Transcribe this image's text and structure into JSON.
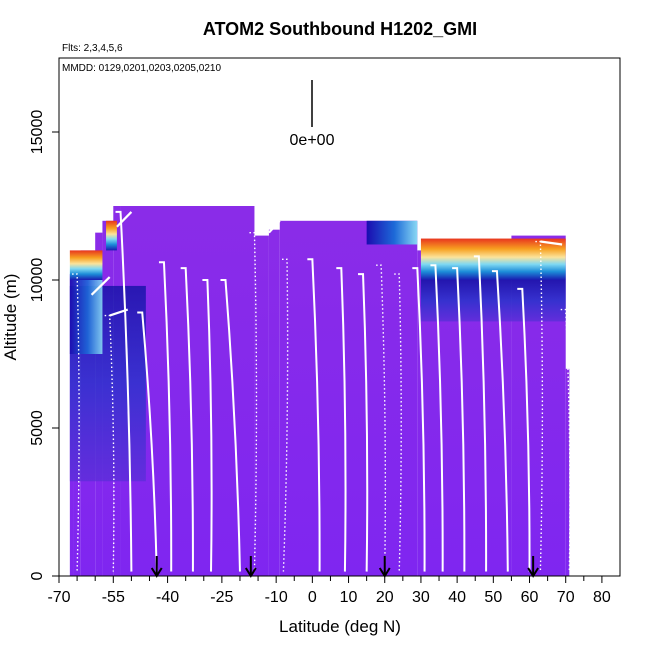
{
  "chart_data": {
    "type": "heatmap",
    "title": "ATOM2 Southbound H1202_GMI",
    "subtitle_flights": "Flts: 2,3,4,5,6",
    "subtitle_dates": "MMDD: 0129,0201,0203,0205,0210",
    "xlabel": "Latitude (deg N)",
    "ylabel": "Altitude (m)",
    "xlim": [
      -70,
      85
    ],
    "ylim": [
      0,
      17500
    ],
    "x_ticks": [
      -70,
      -55,
      -40,
      -25,
      -10,
      0,
      10,
      20,
      30,
      40,
      50,
      60,
      70,
      80
    ],
    "x_tick_labels": [
      "-70",
      "-55",
      "-40",
      "-25",
      "-10",
      "0",
      "10",
      "20",
      "30",
      "40",
      "50",
      "60",
      "70",
      "80"
    ],
    "x_minor_ticks": [
      -65,
      -60,
      -50,
      -45,
      -35,
      -30,
      -20,
      -15,
      -5,
      5,
      15,
      25,
      35,
      45,
      55,
      65,
      75
    ],
    "y_ticks": [
      0,
      5000,
      10000,
      15000
    ],
    "y_tick_labels": [
      "0",
      "5000",
      "10000",
      "15000"
    ],
    "colorbar_label": "0e+00",
    "colorbar_value": 0,
    "date_marker_latitudes": [
      -43,
      -17,
      20,
      61
    ],
    "field_base_altitude": 12000,
    "field_columns": [
      {
        "lat0": -67,
        "lat1": -66,
        "top": 10200
      },
      {
        "lat0": -66,
        "lat1": -64,
        "top": 10400
      },
      {
        "lat0": -64,
        "lat1": -60,
        "top": 11000
      },
      {
        "lat0": -60,
        "lat1": -58,
        "top": 11600
      },
      {
        "lat0": -58,
        "lat1": -55,
        "top": 12000
      },
      {
        "lat0": -55,
        "lat1": -53,
        "top": 12500
      },
      {
        "lat0": -53,
        "lat1": -16,
        "top": 12500
      },
      {
        "lat0": -16,
        "lat1": -12,
        "top": 11500
      },
      {
        "lat0": -12,
        "lat1": -9,
        "top": 11700
      },
      {
        "lat0": -9,
        "lat1": 29,
        "top": 12000
      },
      {
        "lat0": 29,
        "lat1": 55,
        "top": 11000
      },
      {
        "lat0": 55,
        "lat1": 70,
        "top": 11500
      },
      {
        "lat0": 70,
        "lat1": 71,
        "top": 7000
      }
    ],
    "high_values_top": [
      {
        "lat0": -67,
        "lat1": -58,
        "alt0": 10000,
        "alt1": 11000
      },
      {
        "lat0": -57,
        "lat1": -54,
        "alt0": 11000,
        "alt1": 12000
      },
      {
        "lat0": 15,
        "lat1": 29,
        "alt0": 11200,
        "alt1": 12000
      },
      {
        "lat0": 30,
        "lat1": 70,
        "alt0": 10000,
        "alt1": 11400
      }
    ],
    "profiles": [
      {
        "lat_top": -65,
        "alt_top": 10200,
        "lat_bottom": -65,
        "dashed": true
      },
      {
        "lat_top": -56,
        "alt_top": 8800,
        "lat_bottom": -55,
        "dashed": true
      },
      {
        "lat_top": -53,
        "alt_top": 12300,
        "lat_bottom": -50,
        "dashed": false
      },
      {
        "lat_top": -47,
        "alt_top": 8900,
        "lat_bottom": -43,
        "dashed": false
      },
      {
        "lat_top": -41,
        "alt_top": 10600,
        "lat_bottom": -39,
        "dashed": false
      },
      {
        "lat_top": -35,
        "alt_top": 10400,
        "lat_bottom": -33,
        "dashed": false
      },
      {
        "lat_top": -29,
        "alt_top": 10000,
        "lat_bottom": -28,
        "dashed": false
      },
      {
        "lat_top": -24,
        "alt_top": 10000,
        "lat_bottom": -20,
        "dashed": false
      },
      {
        "lat_top": -16,
        "alt_top": 11600,
        "lat_bottom": -16,
        "dashed": true
      },
      {
        "lat_top": -7,
        "alt_top": 10700,
        "lat_bottom": -8,
        "dashed": true
      },
      {
        "lat_top": 0,
        "alt_top": 10700,
        "lat_bottom": 2,
        "dashed": false
      },
      {
        "lat_top": 8,
        "alt_top": 10400,
        "lat_bottom": 9,
        "dashed": false
      },
      {
        "lat_top": 14,
        "alt_top": 10200,
        "lat_bottom": 15,
        "dashed": false
      },
      {
        "lat_top": 19,
        "alt_top": 10500,
        "lat_bottom": 20,
        "dashed": true
      },
      {
        "lat_top": 24,
        "alt_top": 10200,
        "lat_bottom": 24,
        "dashed": true
      },
      {
        "lat_top": 29,
        "alt_top": 10400,
        "lat_bottom": 31,
        "dashed": false
      },
      {
        "lat_top": 34,
        "alt_top": 10500,
        "lat_bottom": 36,
        "dashed": false
      },
      {
        "lat_top": 40,
        "alt_top": 10400,
        "lat_bottom": 42,
        "dashed": false
      },
      {
        "lat_top": 46,
        "alt_top": 10800,
        "lat_bottom": 48,
        "dashed": false
      },
      {
        "lat_top": 51,
        "alt_top": 10300,
        "lat_bottom": 54,
        "dashed": false
      },
      {
        "lat_top": 58,
        "alt_top": 9700,
        "lat_bottom": 60,
        "dashed": false
      },
      {
        "lat_top": 63,
        "alt_top": 11300,
        "lat_bottom": 63,
        "dashed": true
      },
      {
        "lat_top": 70,
        "alt_top": 9000,
        "lat_bottom": 71,
        "dashed": true
      }
    ],
    "cruise_legs": [
      {
        "lat0": -61,
        "lat1": -56,
        "alt0": 9500,
        "alt1": 10100
      },
      {
        "lat0": -56,
        "lat1": -51,
        "alt0": 8800,
        "alt1": 9000
      },
      {
        "lat0": -54,
        "lat1": -50,
        "alt0": 11800,
        "alt1": 12300
      },
      {
        "lat0": -12,
        "lat1": -9,
        "alt0": 11600,
        "alt1": 12000
      },
      {
        "lat0": 63,
        "lat1": 69,
        "alt0": 11300,
        "alt1": 11200
      }
    ]
  }
}
